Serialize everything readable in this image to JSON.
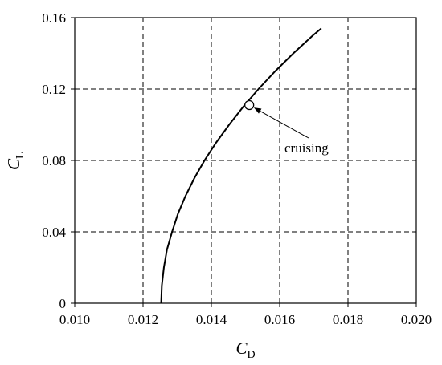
{
  "chart_data": {
    "type": "line",
    "xlabel": "C",
    "xlabel_sub": "D",
    "ylabel": "C",
    "ylabel_sub": "L",
    "xlim": [
      0.01,
      0.02
    ],
    "ylim": [
      0,
      0.16
    ],
    "xticks": [
      0.01,
      0.012,
      0.014,
      0.016,
      0.018,
      0.02
    ],
    "yticks": [
      0,
      0.04,
      0.08,
      0.12,
      0.16
    ],
    "xtick_labels": [
      "0.010",
      "0.012",
      "0.014",
      "0.016",
      "0.018",
      "0.020"
    ],
    "ytick_labels": [
      "0",
      "0.04",
      "0.08",
      "0.12",
      "0.16"
    ],
    "grid": true,
    "series": [
      {
        "x": [
          0.01253,
          0.01255,
          0.01261,
          0.0127,
          0.01285,
          0.01302,
          0.01324,
          0.0135,
          0.0138,
          0.01414,
          0.01452,
          0.01493,
          0.01538,
          0.01587,
          0.0164,
          0.01697,
          0.01722
        ],
        "y": [
          0,
          0.01,
          0.02,
          0.03,
          0.04,
          0.05,
          0.06,
          0.07,
          0.08,
          0.09,
          0.1,
          0.11,
          0.12,
          0.13,
          0.14,
          0.15,
          0.154
        ]
      }
    ],
    "annotations": [
      {
        "text": "cruising",
        "x": 0.01511,
        "y": 0.111
      }
    ]
  }
}
